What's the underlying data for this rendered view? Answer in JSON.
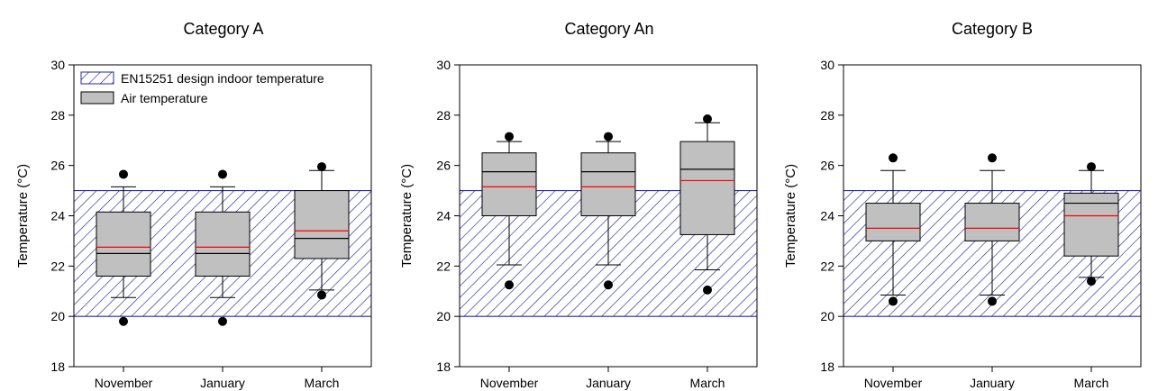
{
  "colors": {
    "box_fill": "#c0c0c0",
    "mean_line": "#ff0000",
    "median_line": "#000000",
    "design_band_hatch": "#2a2a9a",
    "outlier": "#000000"
  },
  "legend": {
    "design_band_label": "EN15251 design indoor temperature",
    "air_label": "Air temperature"
  },
  "chart_data": [
    {
      "type": "box",
      "title": "Category A",
      "ylabel": "Temperature (°C)",
      "xlabel": "",
      "ylim": [
        18,
        30
      ],
      "yticks": [
        18,
        20,
        22,
        24,
        26,
        28,
        30
      ],
      "categories": [
        "November",
        "January",
        "March"
      ],
      "design_band": [
        20,
        25
      ],
      "legend": "top-left",
      "boxes": [
        {
          "whisker_low": 20.75,
          "q1": 21.6,
          "median": 22.5,
          "mean": 22.75,
          "q3": 24.15,
          "whisker_high": 25.15,
          "outliers": [
            19.8,
            25.65
          ]
        },
        {
          "whisker_low": 20.75,
          "q1": 21.6,
          "median": 22.5,
          "mean": 22.75,
          "q3": 24.15,
          "whisker_high": 25.15,
          "outliers": [
            19.8,
            25.65
          ]
        },
        {
          "whisker_low": 21.05,
          "q1": 22.3,
          "median": 23.1,
          "mean": 23.4,
          "q3": 25.0,
          "whisker_high": 25.8,
          "outliers": [
            20.85,
            25.95
          ]
        }
      ]
    },
    {
      "type": "box",
      "title": "Category An",
      "ylabel": "Temperature (°C)",
      "xlabel": "",
      "ylim": [
        18,
        30
      ],
      "yticks": [
        18,
        20,
        22,
        24,
        26,
        28,
        30
      ],
      "categories": [
        "November",
        "January",
        "March"
      ],
      "design_band": [
        20,
        25
      ],
      "boxes": [
        {
          "whisker_low": 22.05,
          "q1": 24.0,
          "median": 25.75,
          "mean": 25.15,
          "q3": 26.5,
          "whisker_high": 26.95,
          "outliers": [
            21.25,
            27.15
          ]
        },
        {
          "whisker_low": 22.05,
          "q1": 24.0,
          "median": 25.75,
          "mean": 25.15,
          "q3": 26.5,
          "whisker_high": 26.95,
          "outliers": [
            21.25,
            27.15
          ]
        },
        {
          "whisker_low": 21.85,
          "q1": 23.25,
          "median": 25.85,
          "mean": 25.4,
          "q3": 26.95,
          "whisker_high": 27.7,
          "outliers": [
            21.05,
            27.85
          ]
        }
      ]
    },
    {
      "type": "box",
      "title": "Category B",
      "ylabel": "Temperature (°C)",
      "xlabel": "",
      "ylim": [
        18,
        30
      ],
      "yticks": [
        18,
        20,
        22,
        24,
        26,
        28,
        30
      ],
      "categories": [
        "November",
        "January",
        "March"
      ],
      "design_band": [
        20,
        25
      ],
      "boxes": [
        {
          "whisker_low": 20.85,
          "q1": 23.0,
          "median": 23.5,
          "mean": 23.5,
          "q3": 24.5,
          "whisker_high": 25.8,
          "outliers": [
            20.6,
            26.3
          ]
        },
        {
          "whisker_low": 20.85,
          "q1": 23.0,
          "median": 23.5,
          "mean": 23.5,
          "q3": 24.5,
          "whisker_high": 25.8,
          "outliers": [
            20.6,
            26.3
          ]
        },
        {
          "whisker_low": 21.55,
          "q1": 22.4,
          "median": 24.5,
          "mean": 24.0,
          "q3": 24.9,
          "whisker_high": 25.8,
          "outliers": [
            21.4,
            25.95
          ]
        }
      ]
    }
  ]
}
